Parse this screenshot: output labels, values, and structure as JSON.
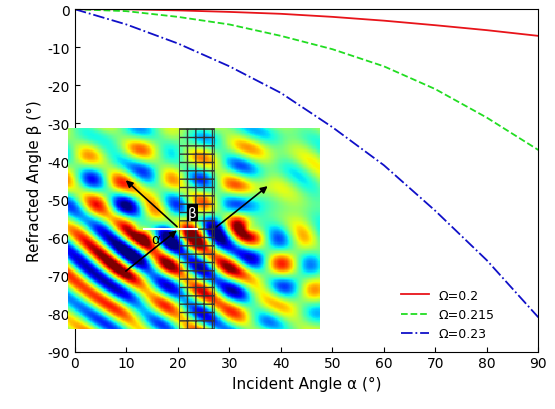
{
  "chart_data": {
    "type": "line",
    "x_label": "Incident Angle α (°)",
    "y_label": "Refracted Angle β (°)",
    "x": [
      0,
      10,
      20,
      30,
      40,
      50,
      60,
      70,
      80,
      90
    ],
    "series": [
      {
        "name": "Ω=0.2",
        "color": "#e8141a",
        "line_style": "solid",
        "values": [
          0,
          0,
          -0.3,
          -0.7,
          -1.2,
          -2.0,
          -3.0,
          -4.2,
          -5.5,
          -7.0
        ]
      },
      {
        "name": "Ω=0.215",
        "color": "#22dd22",
        "line_style": "dashed",
        "values": [
          0,
          -0.5,
          -2.0,
          -4.0,
          -7.0,
          -10.5,
          -15.0,
          -21.0,
          -28.5,
          -37.0
        ]
      },
      {
        "name": "Ω=0.23",
        "color": "#1010c8",
        "line_style": "dashdot",
        "values": [
          0,
          -4.0,
          -9.0,
          -15.0,
          -22.0,
          -31.0,
          -41.0,
          -53.0,
          -66.0,
          -81.0
        ]
      }
    ],
    "xlim": [
      0,
      90
    ],
    "xticks": [
      0,
      10,
      20,
      30,
      40,
      50,
      60,
      70,
      80,
      90
    ],
    "ylim": [
      -90,
      0
    ],
    "yticks": [
      -90,
      -80,
      -70,
      -60,
      -50,
      -40,
      -30,
      -20,
      -10,
      0
    ],
    "grid": false,
    "legend": "lower right",
    "annotations": [
      "α",
      "β"
    ]
  }
}
